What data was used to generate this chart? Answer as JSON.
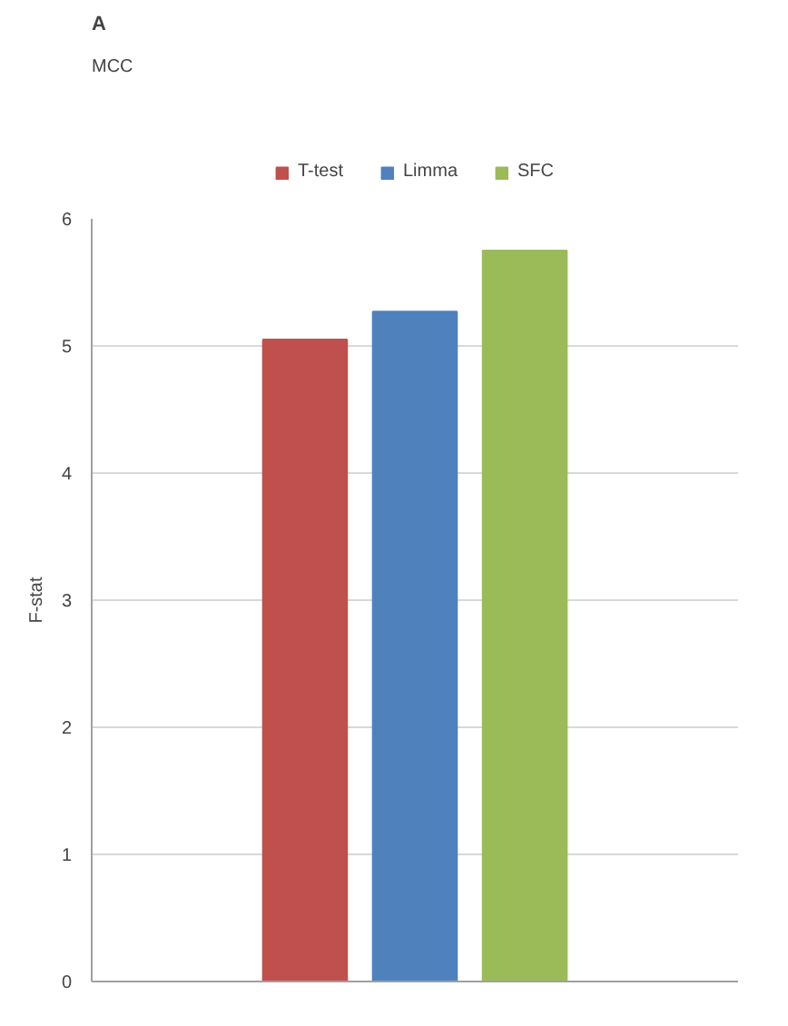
{
  "chart_data": {
    "type": "bar",
    "title": "MCC",
    "ylabel": "F-stat",
    "annotations": [
      "A"
    ],
    "categories": [
      null
    ],
    "series": [
      {
        "name": "T-test",
        "color": "#c0504d",
        "values": [
          5.05
        ]
      },
      {
        "name": "Limma",
        "color": "#4f81bd",
        "values": [
          5.27
        ]
      },
      {
        "name": "SFC",
        "color": "#9bbb59",
        "values": [
          5.75
        ]
      }
    ],
    "ylim": [
      0,
      6
    ],
    "yticks": [
      0,
      1,
      2,
      3,
      4,
      5,
      6
    ],
    "grid": "y",
    "legend": "top"
  }
}
